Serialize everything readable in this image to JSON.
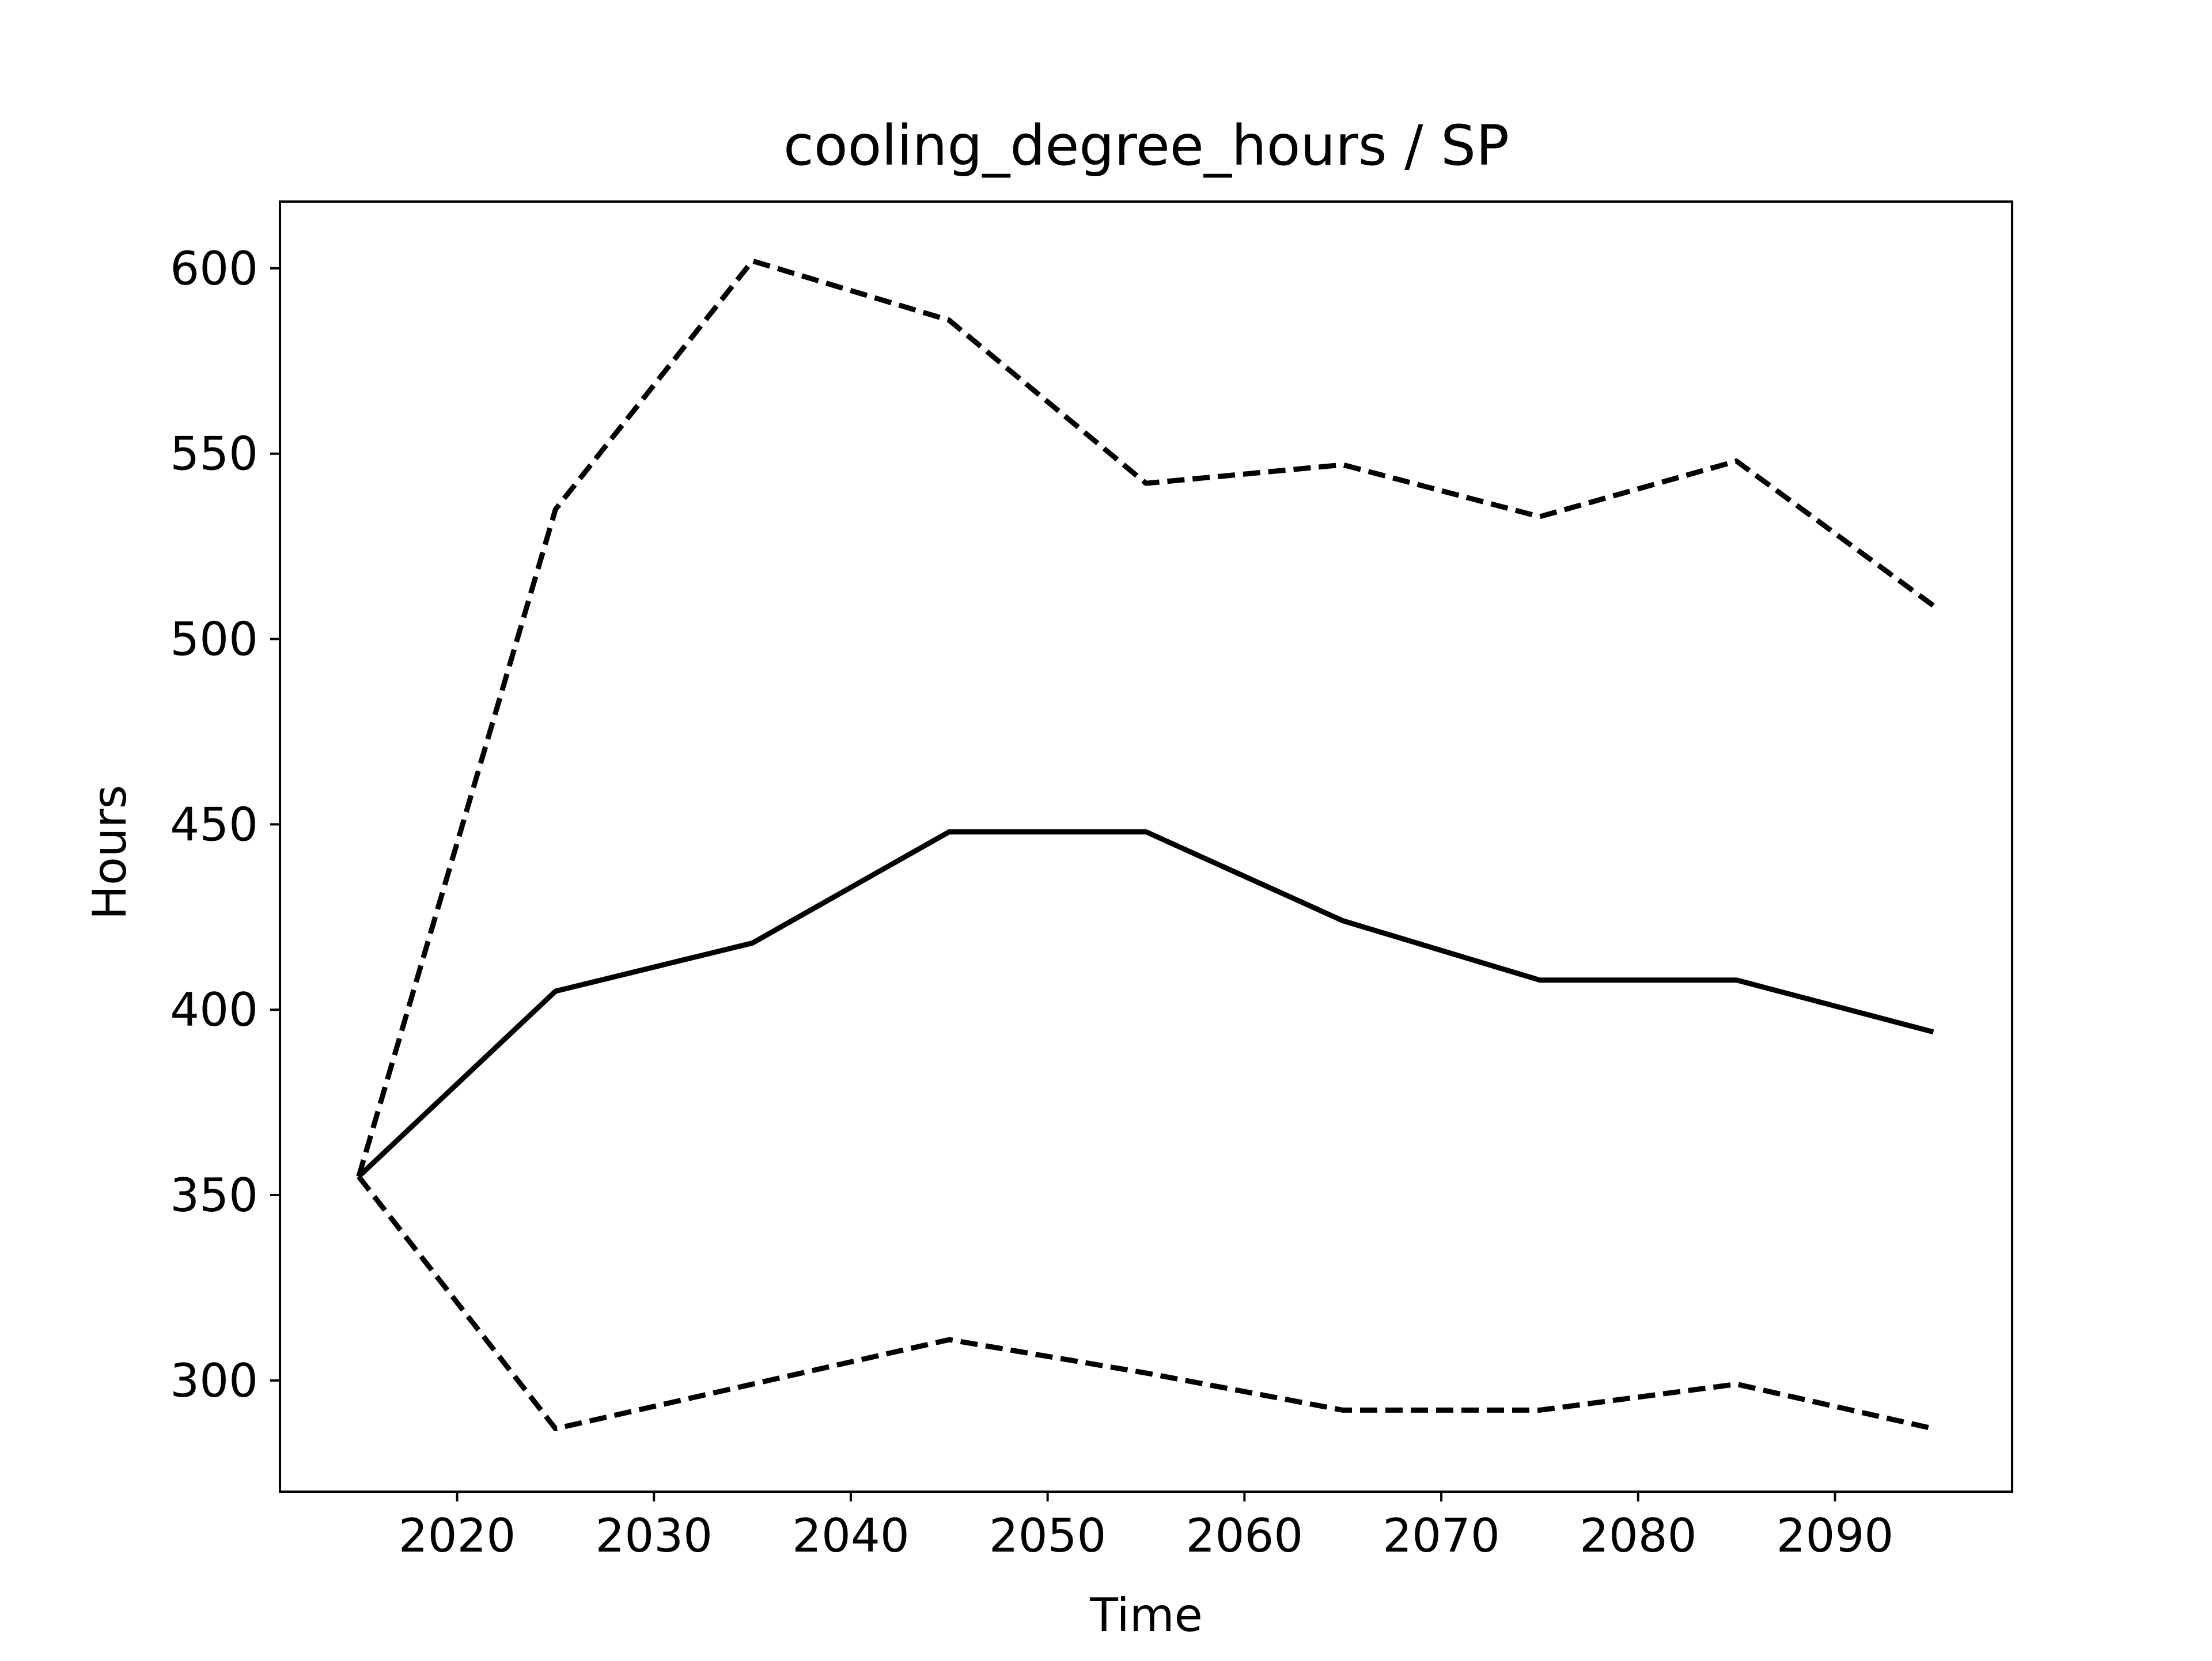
{
  "chart_data": {
    "type": "line",
    "title": "cooling_degree_hours / SP",
    "xlabel": "Time",
    "ylabel": "Hours",
    "x": [
      2015,
      2025,
      2035,
      2045,
      2055,
      2065,
      2075,
      2085,
      2095
    ],
    "xticks": [
      2020,
      2030,
      2040,
      2050,
      2060,
      2070,
      2080,
      2090
    ],
    "yticks": [
      300,
      350,
      400,
      450,
      500,
      550,
      600
    ],
    "xlim": [
      2011,
      2099
    ],
    "ylim": [
      270,
      618
    ],
    "grid": false,
    "series": [
      {
        "style": "dashed",
        "color": "#000000",
        "values": [
          355,
          535,
          602,
          586,
          542,
          547,
          533,
          548,
          509
        ]
      },
      {
        "style": "solid",
        "color": "#000000",
        "values": [
          355,
          405,
          418,
          448,
          448,
          424,
          408,
          408,
          394
        ]
      },
      {
        "style": "dashed",
        "color": "#000000",
        "values": [
          355,
          287,
          299,
          311,
          302,
          292,
          292,
          299,
          287
        ]
      }
    ]
  }
}
